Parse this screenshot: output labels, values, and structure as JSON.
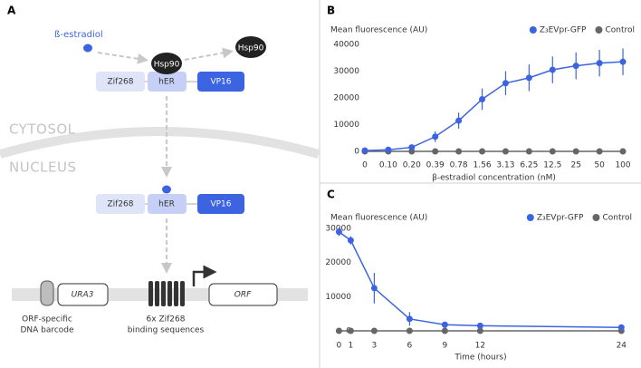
{
  "diagram": {
    "panel_label": "A",
    "ligand": "ß-estradiol",
    "chaperone_bound": "Hsp90",
    "chaperone_free": "Hsp90",
    "fusion_top": [
      "Zif268",
      "hER",
      "VP16"
    ],
    "compartments": [
      "CYTOSOL",
      "NUCLEUS"
    ],
    "fusion_bottom": [
      "Zif268",
      "hER",
      "VP16"
    ],
    "dna": {
      "marker": "URA3",
      "orf": "ORF",
      "barcode_label": [
        "ORF-specific",
        "DNA barcode"
      ],
      "binding_label": [
        "6x Zif268",
        "binding sequences"
      ]
    }
  },
  "chart_data": [
    {
      "type": "line",
      "panel_label": "B",
      "y_label": "Mean fluorescence (AU)",
      "x_label": "β-estradiol concentration (nM)",
      "categories": [
        "0",
        "0.10",
        "0.20",
        "0.39",
        "0.78",
        "1.56",
        "3.13",
        "6.25",
        "12.5",
        "25",
        "50",
        "100"
      ],
      "series": [
        {
          "name": "Z₃EVpr-GFP",
          "color": "#3d64e0",
          "values": [
            300,
            600,
            1500,
            5500,
            11500,
            19500,
            25500,
            27500,
            30500,
            32000,
            33000,
            33500
          ],
          "errors": [
            300,
            500,
            800,
            2000,
            3000,
            4000,
            4500,
            5000,
            5000,
            5000,
            5000,
            5000
          ]
        },
        {
          "name": "Control",
          "color": "#666666",
          "values": [
            0,
            0,
            0,
            0,
            0,
            0,
            0,
            0,
            0,
            0,
            0,
            0
          ]
        }
      ],
      "ylim": [
        0,
        40000
      ],
      "yticks": [
        0,
        10000,
        20000,
        30000,
        40000
      ],
      "grid": false,
      "legend": "upper right"
    },
    {
      "type": "line",
      "panel_label": "C",
      "y_label": "Mean fluorescence (AU)",
      "x_label": "Time (hours)",
      "x": [
        0,
        1,
        3,
        6,
        9,
        12,
        24
      ],
      "xlim": [
        -0.8,
        24.9
      ],
      "xticks": [
        0,
        1,
        3,
        6,
        9,
        12,
        24
      ],
      "series": [
        {
          "name": "Z₃EVpr-GFP",
          "color": "#3d64e0",
          "values": [
            29000,
            26500,
            12500,
            3500,
            1800,
            1500,
            1000
          ],
          "errors": [
            1200,
            1200,
            4500,
            2000,
            500,
            300,
            500
          ]
        },
        {
          "name": "Control",
          "color": "#666666",
          "values": [
            0,
            0,
            0,
            0,
            0,
            0,
            0
          ]
        }
      ],
      "ylim": [
        0,
        30000
      ],
      "yticks": [
        0,
        10000,
        20000,
        30000
      ],
      "grid": false,
      "legend": "upper right"
    }
  ]
}
